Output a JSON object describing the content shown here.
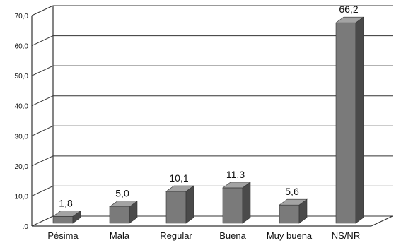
{
  "chart_data": {
    "type": "bar",
    "categories": [
      "Pésima",
      "Mala",
      "Regular",
      "Buena",
      "Muy buena",
      "NS/NR"
    ],
    "values": [
      1.8,
      5.0,
      10.1,
      11.3,
      5.6,
      66.2
    ],
    "value_labels": [
      "1,8",
      "5,0",
      "10,1",
      "11,3",
      "5,6",
      "66,2"
    ],
    "y_tick_labels": [
      ".0",
      "10,0",
      "20,0",
      "30,0",
      "40,0",
      "50,0",
      "60,0",
      "70,0"
    ],
    "y_ticks": [
      0,
      10,
      20,
      30,
      40,
      50,
      60,
      70
    ],
    "ylim": [
      0,
      70
    ],
    "title": "",
    "xlabel": "",
    "ylabel": "",
    "grid": true,
    "legend": "none",
    "style": "3d",
    "colors": {
      "bar_front": "#7a7a7a",
      "bar_top": "#a3a3a3",
      "bar_side": "#4a4a4a",
      "grid": "#333333",
      "wall_line": "#333333"
    }
  }
}
